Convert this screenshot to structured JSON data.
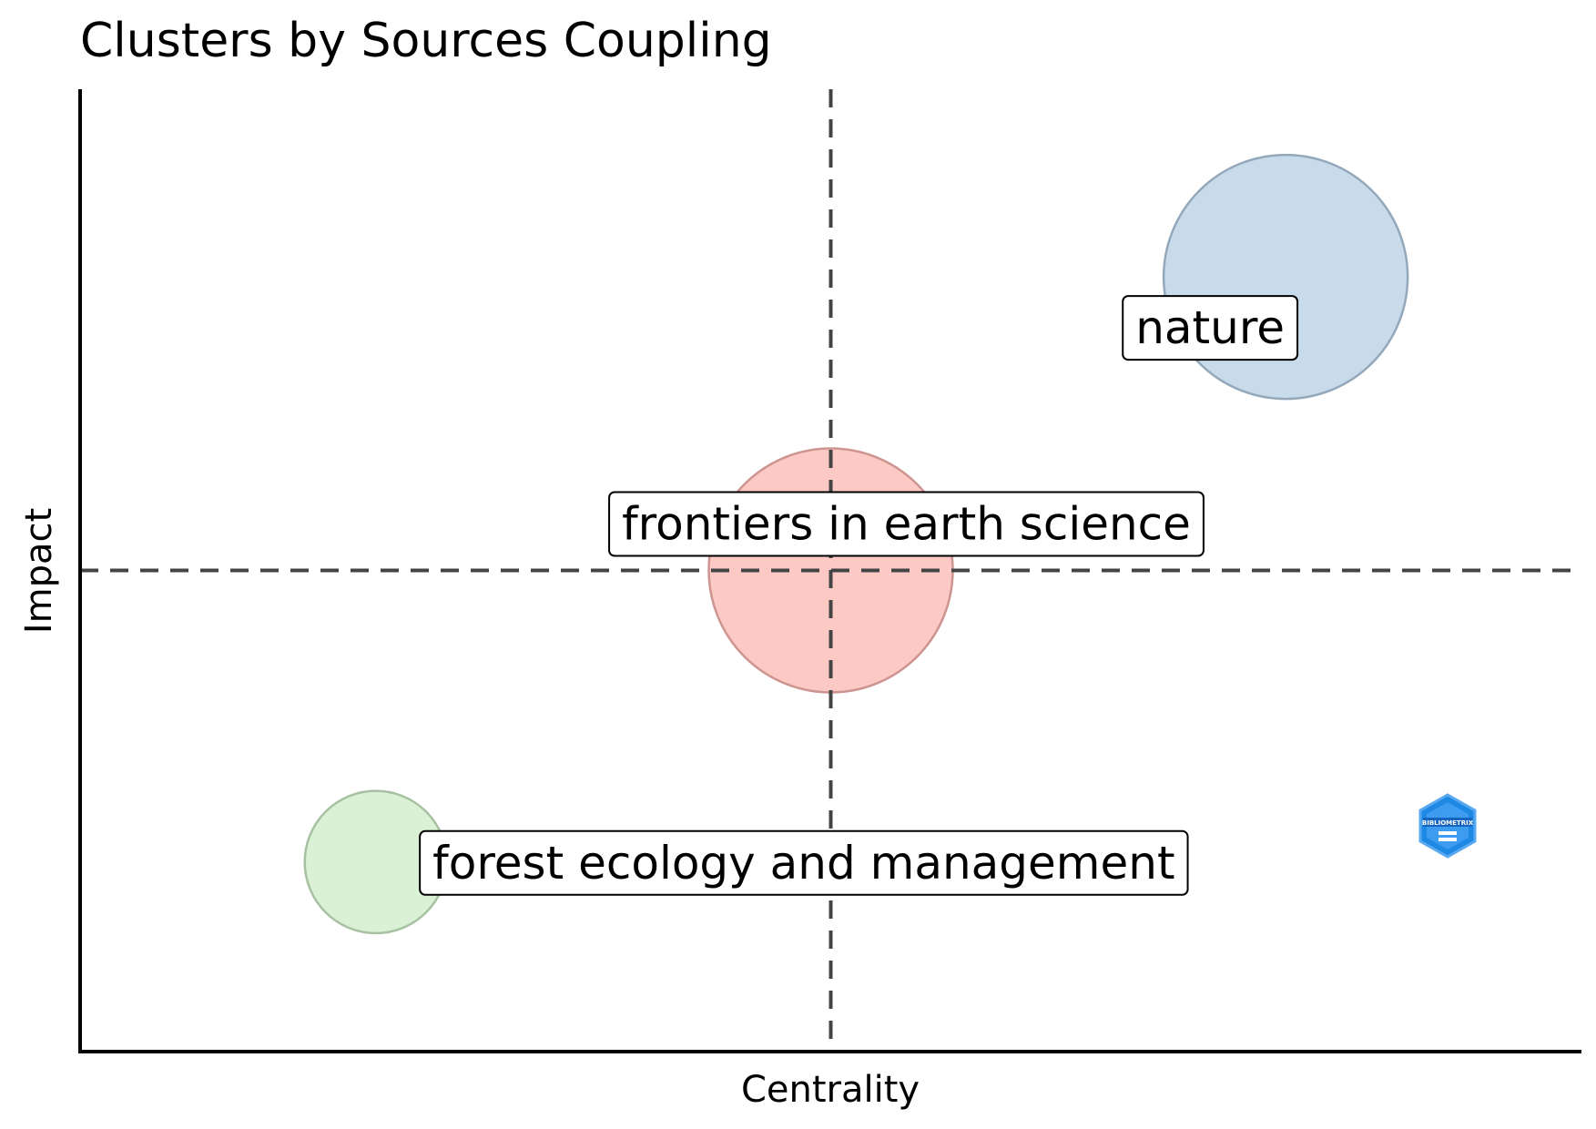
{
  "chart_data": {
    "type": "scatter",
    "title": "Clusters by Sources Coupling",
    "xlabel": "Centrality",
    "ylabel": "Impact",
    "xlim": [
      0,
      1
    ],
    "ylim": [
      0,
      1
    ],
    "reference_lines": {
      "x": 0.5,
      "y": 0.5
    },
    "grid": false,
    "legend": "none",
    "points": [
      {
        "label": "nature",
        "x": 0.803,
        "y": 0.805,
        "size": 1.0,
        "color": "#b3cde3"
      },
      {
        "label": "frontiers in earth science",
        "x": 0.5,
        "y": 0.5,
        "size": 1.0,
        "color": "#fbb4ae"
      },
      {
        "label": "forest ecology and management",
        "x": 0.197,
        "y": 0.197,
        "size": 0.34,
        "color": "#ccebc5"
      }
    ]
  },
  "colors": {
    "axis": "#000000",
    "reference_line": "#444444",
    "logo": "#1e88e5"
  },
  "logo": {
    "icon": "bibliometrix-logo-icon",
    "text": "BIBLIOMETRIX"
  }
}
